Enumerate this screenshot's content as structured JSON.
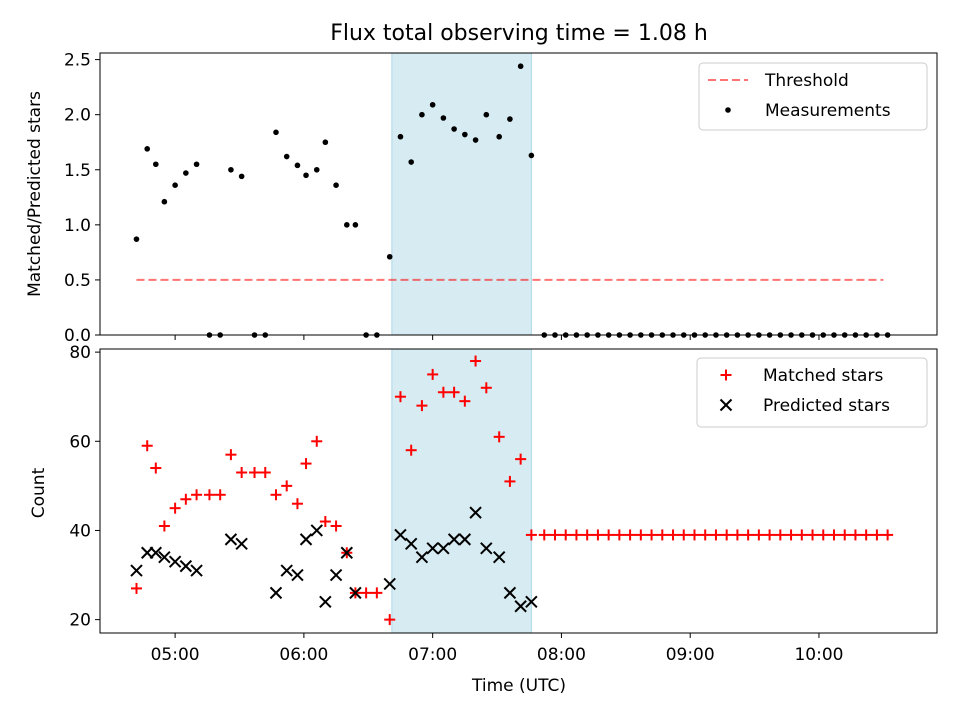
{
  "chart_data": [
    {
      "type": "scatter",
      "panel": "top",
      "title": "Flux total observing time = 1.08 h",
      "xlabel": "",
      "ylabel": "Matched/Predicted stars",
      "xlim": [
        "04:25",
        "10:55"
      ],
      "ylim": [
        0,
        2.56
      ],
      "yticks": [
        0.0,
        0.5,
        1.0,
        1.5,
        2.0,
        2.5
      ],
      "ytick_labels": [
        "0.0",
        "0.5",
        "1.0",
        "1.5",
        "2.0",
        "2.5"
      ],
      "xticks": [
        "05:00",
        "06:00",
        "07:00",
        "08:00",
        "09:00",
        "10:00"
      ],
      "shaded_interval": {
        "start": "06:41",
        "end": "07:46",
        "color": "#add8e6"
      },
      "legend_position": "upper right",
      "series": [
        {
          "name": "Threshold",
          "kind": "dashed-line",
          "color": "#ff0000",
          "x": [
            "04:42",
            "10:30"
          ],
          "y": [
            0.5,
            0.5
          ]
        },
        {
          "name": "Measurements",
          "kind": "dot",
          "color": "#000000",
          "x": [
            "04:42",
            "04:47",
            "04:51",
            "04:55",
            "05:00",
            "05:05",
            "05:10",
            "05:16",
            "05:21",
            "05:26",
            "05:31",
            "05:37",
            "05:42",
            "05:47",
            "05:52",
            "05:57",
            "06:01",
            "06:06",
            "06:10",
            "06:15",
            "06:20",
            "06:24",
            "06:29",
            "06:34",
            "06:40",
            "06:45",
            "06:50",
            "06:55",
            "07:00",
            "07:05",
            "07:10",
            "07:15",
            "07:20",
            "07:25",
            "07:31",
            "07:36",
            "07:41",
            "07:46"
          ],
          "y": [
            0.87,
            1.69,
            1.55,
            1.21,
            1.36,
            1.47,
            1.55,
            0,
            0,
            1.5,
            1.44,
            0,
            0,
            1.84,
            1.62,
            1.54,
            1.45,
            1.5,
            1.75,
            1.36,
            1.0,
            1.0,
            0,
            0,
            0.71,
            1.8,
            1.57,
            2.0,
            2.09,
            1.97,
            1.87,
            1.82,
            1.77,
            2.0,
            1.8,
            1.96,
            2.44,
            1.63
          ]
        },
        {
          "name": "",
          "kind": "dot",
          "color": "#000000",
          "x": [
            "07:52",
            "07:57",
            "08:02",
            "08:07",
            "08:12",
            "08:17",
            "08:22",
            "08:27",
            "08:32",
            "08:37",
            "08:42",
            "08:47",
            "08:52",
            "08:57",
            "09:02",
            "09:07",
            "09:12",
            "09:17",
            "09:22",
            "09:27",
            "09:32",
            "09:37",
            "09:42",
            "09:47",
            "09:52",
            "09:57",
            "10:02",
            "10:07",
            "10:12",
            "10:17",
            "10:22",
            "10:27",
            "10:32"
          ],
          "y": [
            0,
            0,
            0,
            0,
            0,
            0,
            0,
            0,
            0,
            0,
            0,
            0,
            0,
            0,
            0,
            0,
            0,
            0,
            0,
            0,
            0,
            0,
            0,
            0,
            0,
            0,
            0,
            0,
            0,
            0,
            0,
            0,
            0
          ]
        }
      ]
    },
    {
      "type": "scatter",
      "panel": "bottom",
      "title": "",
      "xlabel": "Time (UTC)",
      "ylabel": "Count",
      "xlim": [
        "04:25",
        "10:55"
      ],
      "ylim": [
        17,
        80.7
      ],
      "yticks": [
        20,
        40,
        60,
        80
      ],
      "ytick_labels": [
        "20",
        "40",
        "60",
        "80"
      ],
      "xticks": [
        "05:00",
        "06:00",
        "07:00",
        "08:00",
        "09:00",
        "10:00"
      ],
      "xtick_labels": [
        "05:00",
        "06:00",
        "07:00",
        "08:00",
        "09:00",
        "10:00"
      ],
      "shaded_interval": {
        "start": "06:41",
        "end": "07:46",
        "color": "#add8e6"
      },
      "legend_position": "upper right",
      "series": [
        {
          "name": "Matched stars",
          "kind": "plus",
          "color": "#ff0000",
          "x": [
            "04:42",
            "04:47",
            "04:51",
            "04:55",
            "05:00",
            "05:05",
            "05:10",
            "05:16",
            "05:21",
            "05:26",
            "05:31",
            "05:37",
            "05:42",
            "05:47",
            "05:52",
            "05:57",
            "06:01",
            "06:06",
            "06:10",
            "06:15",
            "06:20",
            "06:24",
            "06:29",
            "06:34",
            "06:40",
            "06:45",
            "06:50",
            "06:55",
            "07:00",
            "07:05",
            "07:10",
            "07:15",
            "07:20",
            "07:25",
            "07:31",
            "07:36",
            "07:41",
            "07:46",
            "07:52",
            "07:57",
            "08:02",
            "08:07",
            "08:12",
            "08:17",
            "08:22",
            "08:27",
            "08:32",
            "08:37",
            "08:42",
            "08:47",
            "08:52",
            "08:57",
            "09:02",
            "09:07",
            "09:12",
            "09:17",
            "09:22",
            "09:27",
            "09:32",
            "09:37",
            "09:42",
            "09:47",
            "09:52",
            "09:57",
            "10:02",
            "10:07",
            "10:12",
            "10:17",
            "10:22",
            "10:27",
            "10:32"
          ],
          "y": [
            27,
            59,
            54,
            41,
            45,
            47,
            48,
            48,
            48,
            57,
            53,
            53,
            53,
            48,
            50,
            46,
            55,
            60,
            42,
            41,
            35,
            26,
            26,
            26,
            20,
            70,
            58,
            68,
            75,
            71,
            71,
            69,
            78,
            72,
            61,
            51,
            56,
            39,
            39,
            39,
            39,
            39,
            39,
            39,
            39,
            39,
            39,
            39,
            39,
            39,
            39,
            39,
            39,
            39,
            39,
            39,
            39,
            39,
            39,
            39,
            39,
            39,
            39,
            39,
            39,
            39,
            39,
            39,
            39,
            39,
            39
          ]
        },
        {
          "name": "Predicted stars",
          "kind": "cross",
          "color": "#000000",
          "x": [
            "04:42",
            "04:47",
            "04:51",
            "04:55",
            "05:00",
            "05:05",
            "05:10",
            "05:26",
            "05:31",
            "05:47",
            "05:52",
            "05:57",
            "06:01",
            "06:06",
            "06:10",
            "06:15",
            "06:20",
            "06:24",
            "06:40",
            "06:45",
            "06:50",
            "06:55",
            "07:00",
            "07:05",
            "07:10",
            "07:15",
            "07:20",
            "07:25",
            "07:31",
            "07:36",
            "07:41",
            "07:46"
          ],
          "y": [
            31,
            35,
            35,
            34,
            33,
            32,
            31,
            38,
            37,
            26,
            31,
            30,
            38,
            40,
            24,
            30,
            35,
            26,
            28,
            39,
            37,
            34,
            36,
            36,
            38,
            38,
            44,
            36,
            34,
            26,
            23,
            24
          ]
        }
      ]
    }
  ]
}
